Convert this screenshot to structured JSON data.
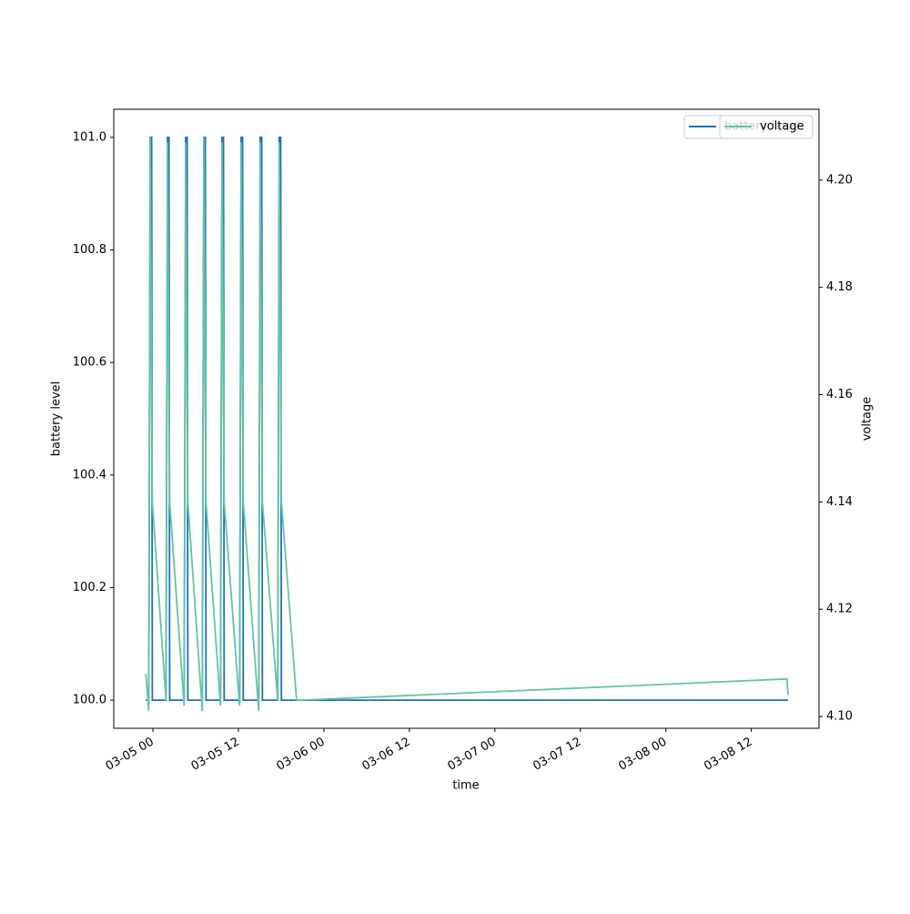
{
  "chart_data": {
    "type": "line",
    "x_label": "time",
    "y_label": "battery level",
    "y2_label": "voltage",
    "x": [
      "03-04 23:00",
      "03-04 23:25",
      "03-04 23:37",
      "03-04 23:49",
      "03-04 23:55",
      "03-05 01:50",
      "03-05 02:03",
      "03-05 02:15",
      "03-05 02:21",
      "03-05 04:23",
      "03-05 04:36",
      "03-05 04:48",
      "03-05 04:54",
      "03-05 06:56",
      "03-05 07:09",
      "03-05 07:21",
      "03-05 07:27",
      "03-05 09:29",
      "03-05 09:42",
      "03-05 09:54",
      "03-05 10:00",
      "03-05 12:10",
      "03-05 12:23",
      "03-05 12:35",
      "03-05 12:41",
      "03-05 14:51",
      "03-05 15:04",
      "03-05 15:16",
      "03-05 15:22",
      "03-05 17:31",
      "03-05 17:44",
      "03-05 17:56",
      "03-05 18:02",
      "03-05 20:10",
      "03-08 17:00",
      "03-08 17:10"
    ],
    "series": [
      {
        "name": "battery level",
        "color": "#1f6fb4",
        "axis": "y",
        "values": [
          100,
          100,
          101,
          101,
          100,
          100,
          101,
          101,
          100,
          100,
          101,
          101,
          100,
          100,
          101,
          101,
          100,
          100,
          101,
          101,
          100,
          100,
          101,
          101,
          100,
          100,
          101,
          101,
          100,
          100,
          101,
          101,
          100,
          100,
          100,
          100
        ]
      },
      {
        "name": "voltage",
        "color": "#66c2a5",
        "axis": "y2",
        "values": [
          4.108,
          4.101,
          4.208,
          4.16,
          4.14,
          4.103,
          4.207,
          4.16,
          4.14,
          4.102,
          4.207,
          4.16,
          4.14,
          4.101,
          4.208,
          4.16,
          4.14,
          4.102,
          4.207,
          4.16,
          4.14,
          4.102,
          4.207,
          4.16,
          4.14,
          4.101,
          4.207,
          4.16,
          4.14,
          4.103,
          4.207,
          4.16,
          4.14,
          4.103,
          4.107,
          4.104
        ]
      }
    ],
    "xlim": [
      "03-04 18:30",
      "03-08 21:30"
    ],
    "xticks": [
      "03-05 00",
      "03-05 12",
      "03-06 00",
      "03-06 12",
      "03-07 00",
      "03-07 12",
      "03-08 00",
      "03-08 12"
    ],
    "ylim": [
      99.95,
      101.05
    ],
    "yticks": [
      {
        "value": 100,
        "label": "100.0"
      },
      100.2,
      100.4,
      100.6,
      100.8,
      {
        "value": 101,
        "label": "101.0"
      }
    ],
    "y2lim": [
      4.0978,
      4.2132
    ],
    "y2ticks": [
      {
        "value": 4.1,
        "label": "4.10"
      },
      4.12,
      4.14,
      4.16,
      4.18,
      {
        "value": 4.2,
        "label": "4.20"
      }
    ],
    "legend": "upper right"
  }
}
